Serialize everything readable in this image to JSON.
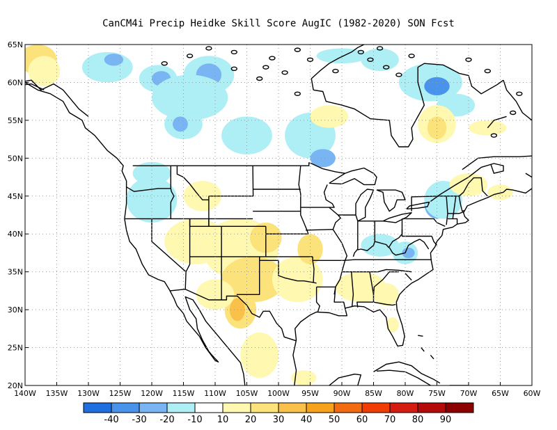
{
  "title": "CanCM4i Precip Heidke Skill Score AugIC (1982-2020) SON Fcst",
  "map": {
    "lon_range": [
      -140,
      -60
    ],
    "lat_range": [
      20,
      65
    ],
    "grid": true,
    "lon_ticks": [
      {
        "lon": -140,
        "label": "140W"
      },
      {
        "lon": -135,
        "label": "135W"
      },
      {
        "lon": -130,
        "label": "130W"
      },
      {
        "lon": -125,
        "label": "125W"
      },
      {
        "lon": -120,
        "label": "120W"
      },
      {
        "lon": -115,
        "label": "115W"
      },
      {
        "lon": -110,
        "label": "110W"
      },
      {
        "lon": -105,
        "label": "105W"
      },
      {
        "lon": -100,
        "label": "100W"
      },
      {
        "lon": -95,
        "label": "95W"
      },
      {
        "lon": -90,
        "label": "90W"
      },
      {
        "lon": -85,
        "label": "85W"
      },
      {
        "lon": -80,
        "label": "80W"
      },
      {
        "lon": -75,
        "label": "75W"
      },
      {
        "lon": -70,
        "label": "70W"
      },
      {
        "lon": -65,
        "label": "65W"
      },
      {
        "lon": -60,
        "label": "60W"
      }
    ],
    "lat_ticks": [
      {
        "lat": 20,
        "label": "20N"
      },
      {
        "lat": 25,
        "label": "25N"
      },
      {
        "lat": 30,
        "label": "30N"
      },
      {
        "lat": 35,
        "label": "35N"
      },
      {
        "lat": 40,
        "label": "40N"
      },
      {
        "lat": 45,
        "label": "45N"
      },
      {
        "lat": 50,
        "label": "50N"
      },
      {
        "lat": 55,
        "label": "55N"
      },
      {
        "lat": 60,
        "label": "60N"
      },
      {
        "lat": 65,
        "label": "65N"
      }
    ]
  },
  "colorbar": {
    "colors": [
      "#1f6fe0",
      "#4a93ea",
      "#78b5f2",
      "#aeeef5",
      "#ffffff",
      "#fff8b0",
      "#fce27a",
      "#f9c04a",
      "#f7a21b",
      "#f26b10",
      "#f23c06",
      "#d41c10",
      "#b40a0a",
      "#8c0000"
    ],
    "labels": [
      "-40",
      "-30",
      "-20",
      "-10",
      "10",
      "20",
      "30",
      "40",
      "50",
      "60",
      "70",
      "80",
      "90"
    ]
  },
  "shading": [
    {
      "lon": -138,
      "lat": 63,
      "rx": 3,
      "ry": 2,
      "color": "#fce27a"
    },
    {
      "lon": -137,
      "lat": 61.5,
      "rx": 2.5,
      "ry": 2,
      "color": "#fff8b0"
    },
    {
      "lon": -127,
      "lat": 62,
      "rx": 4,
      "ry": 2,
      "color": "#aeeef5"
    },
    {
      "lon": -126,
      "lat": 63,
      "rx": 1.5,
      "ry": 0.8,
      "color": "#78b5f2"
    },
    {
      "lon": -119,
      "lat": 60.5,
      "rx": 3,
      "ry": 1.8,
      "color": "#aeeef5"
    },
    {
      "lon": -118.5,
      "lat": 60.5,
      "rx": 1.5,
      "ry": 1,
      "color": "#78b5f2"
    },
    {
      "lon": -111,
      "lat": 61,
      "rx": 4,
      "ry": 2.5,
      "color": "#aeeef5"
    },
    {
      "lon": -111,
      "lat": 61,
      "rx": 2,
      "ry": 1.5,
      "color": "#78b5f2"
    },
    {
      "lon": -114,
      "lat": 58,
      "rx": 6,
      "ry": 3,
      "color": "#aeeef5"
    },
    {
      "lon": -115,
      "lat": 54.5,
      "rx": 3,
      "ry": 2,
      "color": "#aeeef5"
    },
    {
      "lon": -115.5,
      "lat": 54.5,
      "rx": 1.2,
      "ry": 1,
      "color": "#78b5f2"
    },
    {
      "lon": -105,
      "lat": 53,
      "rx": 4,
      "ry": 2.5,
      "color": "#aeeef5"
    },
    {
      "lon": -120,
      "lat": 48,
      "rx": 3,
      "ry": 1.5,
      "color": "#aeeef5"
    },
    {
      "lon": -95,
      "lat": 53,
      "rx": 4,
      "ry": 3,
      "color": "#aeeef5"
    },
    {
      "lon": -93,
      "lat": 50,
      "rx": 2,
      "ry": 1.2,
      "color": "#78b5f2"
    },
    {
      "lon": -84,
      "lat": 63,
      "rx": 3,
      "ry": 1.5,
      "color": "#aeeef5"
    },
    {
      "lon": -90,
      "lat": 63.5,
      "rx": 4,
      "ry": 1,
      "color": "#aeeef5"
    },
    {
      "lon": -76,
      "lat": 60,
      "rx": 5,
      "ry": 2.5,
      "color": "#aeeef5"
    },
    {
      "lon": -75,
      "lat": 59.5,
      "rx": 2,
      "ry": 1.2,
      "color": "#4a93ea"
    },
    {
      "lon": -72,
      "lat": 57,
      "rx": 3,
      "ry": 1.5,
      "color": "#aeeef5"
    },
    {
      "lon": -75,
      "lat": 54.5,
      "rx": 3,
      "ry": 2.5,
      "color": "#fff8b0"
    },
    {
      "lon": -75,
      "lat": 54,
      "rx": 1.5,
      "ry": 1.5,
      "color": "#fce27a"
    },
    {
      "lon": -67,
      "lat": 54,
      "rx": 3,
      "ry": 1,
      "color": "#fff8b0"
    },
    {
      "lon": -92,
      "lat": 55.5,
      "rx": 3,
      "ry": 1.5,
      "color": "#fff8b0"
    },
    {
      "lon": -75,
      "lat": 44,
      "rx": 2,
      "ry": 2,
      "color": "#78b5f2"
    },
    {
      "lon": -74,
      "lat": 44.5,
      "rx": 3,
      "ry": 2.5,
      "color": "#aeeef5"
    },
    {
      "lon": -70,
      "lat": 46.5,
      "rx": 3,
      "ry": 1.5,
      "color": "#fff8b0"
    },
    {
      "lon": -65,
      "lat": 45.5,
      "rx": 2,
      "ry": 1,
      "color": "#fff8b0"
    },
    {
      "lon": -120,
      "lat": 44.5,
      "rx": 4,
      "ry": 3,
      "color": "#aeeef5"
    },
    {
      "lon": -112,
      "lat": 45,
      "rx": 3,
      "ry": 2,
      "color": "#fff8b0"
    },
    {
      "lon": -113,
      "lat": 39,
      "rx": 5,
      "ry": 3,
      "color": "#fff8b0"
    },
    {
      "lon": -106,
      "lat": 38,
      "rx": 6,
      "ry": 4,
      "color": "#fff8b0"
    },
    {
      "lon": -102,
      "lat": 39.5,
      "rx": 2.5,
      "ry": 2,
      "color": "#fce27a"
    },
    {
      "lon": -104,
      "lat": 34,
      "rx": 5,
      "ry": 3,
      "color": "#fce27a"
    },
    {
      "lon": -106,
      "lat": 30,
      "rx": 2.5,
      "ry": 2.5,
      "color": "#fce27a"
    },
    {
      "lon": -106.5,
      "lat": 30,
      "rx": 1.2,
      "ry": 1.5,
      "color": "#f9c04a"
    },
    {
      "lon": -97,
      "lat": 34,
      "rx": 4,
      "ry": 3,
      "color": "#fff8b0"
    },
    {
      "lon": -95,
      "lat": 38,
      "rx": 2,
      "ry": 2,
      "color": "#fce27a"
    },
    {
      "lon": -103,
      "lat": 24,
      "rx": 3,
      "ry": 3,
      "color": "#fff8b0"
    },
    {
      "lon": -110,
      "lat": 32,
      "rx": 3,
      "ry": 2,
      "color": "#fff8b0"
    },
    {
      "lon": -87,
      "lat": 33,
      "rx": 4,
      "ry": 2,
      "color": "#fff8b0"
    },
    {
      "lon": -83,
      "lat": 32,
      "rx": 2,
      "ry": 1.5,
      "color": "#fff8b0"
    },
    {
      "lon": -84,
      "lat": 38.5,
      "rx": 3,
      "ry": 1.5,
      "color": "#aeeef5"
    },
    {
      "lon": -80,
      "lat": 37.5,
      "rx": 2,
      "ry": 1.5,
      "color": "#aeeef5"
    },
    {
      "lon": -79.5,
      "lat": 37.5,
      "rx": 1,
      "ry": 0.7,
      "color": "#78b5f2"
    },
    {
      "lon": -96,
      "lat": 21,
      "rx": 2,
      "ry": 1,
      "color": "#fff8b0"
    },
    {
      "lon": -82,
      "lat": 28,
      "rx": 1,
      "ry": 1,
      "color": "#fff8b0"
    }
  ]
}
